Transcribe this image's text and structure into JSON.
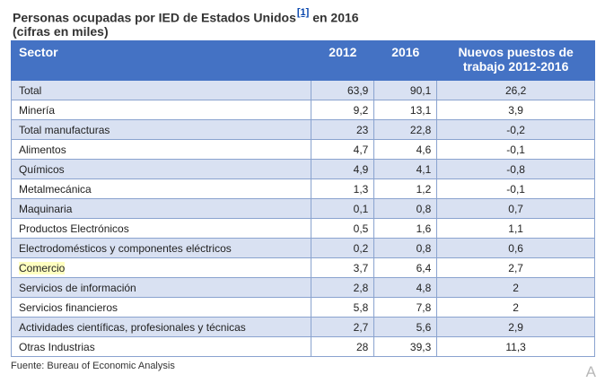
{
  "title": {
    "main": "Personas ocupadas por IED de Estados Unidos",
    "ref": "[1]",
    "suffix": " en 2016",
    "subtitle": "(cifras en miles)"
  },
  "table": {
    "headers": {
      "sector": "Sector",
      "y2012": "2012",
      "y2016": "2016",
      "new_jobs": "Nuevos puestos de trabajo 2012-2016"
    },
    "rows": [
      {
        "sector": "Total",
        "y2012": "63,9",
        "y2016": "90,1",
        "diff": "26,2"
      },
      {
        "sector": "Minería",
        "y2012": "9,2",
        "y2016": "13,1",
        "diff": "3,9"
      },
      {
        "sector": "Total manufacturas",
        "y2012": "23",
        "y2016": "22,8",
        "diff": "-0,2"
      },
      {
        "sector": "Alimentos",
        "y2012": "4,7",
        "y2016": "4,6",
        "diff": "-0,1"
      },
      {
        "sector": "Químicos",
        "y2012": "4,9",
        "y2016": "4,1",
        "diff": "-0,8"
      },
      {
        "sector": "Metalmecánica",
        "y2012": "1,3",
        "y2016": "1,2",
        "diff": "-0,1"
      },
      {
        "sector": "Maquinaria",
        "y2012": "0,1",
        "y2016": "0,8",
        "diff": "0,7"
      },
      {
        "sector": "Productos Electrónicos",
        "y2012": "0,5",
        "y2016": "1,6",
        "diff": "1,1"
      },
      {
        "sector": "Electrodomésticos y componentes eléctricos",
        "y2012": "0,2",
        "y2016": "0,8",
        "diff": "0,6"
      },
      {
        "sector": "Comercio",
        "y2012": "3,7",
        "y2016": "6,4",
        "diff": "2,7"
      },
      {
        "sector": "Servicios de información",
        "y2012": "2,8",
        "y2016": "4,8",
        "diff": "2"
      },
      {
        "sector": "Servicios financieros",
        "y2012": "5,8",
        "y2016": "7,8",
        "diff": "2"
      },
      {
        "sector": "Actividades científicas, profesionales y técnicas",
        "y2012": "2,7",
        "y2016": "5,6",
        "diff": "2,9"
      },
      {
        "sector": "Otras Industrias",
        "y2012": "28",
        "y2016": "39,3",
        "diff": "11,3"
      }
    ]
  },
  "source": "Fuente: Bureau of Economic Analysis",
  "corner_mark": "A",
  "colors": {
    "header_bg": "#4472c4",
    "row_shade": "#d9e1f2",
    "highlight": "#ffffc0",
    "link": "#0645ad"
  }
}
